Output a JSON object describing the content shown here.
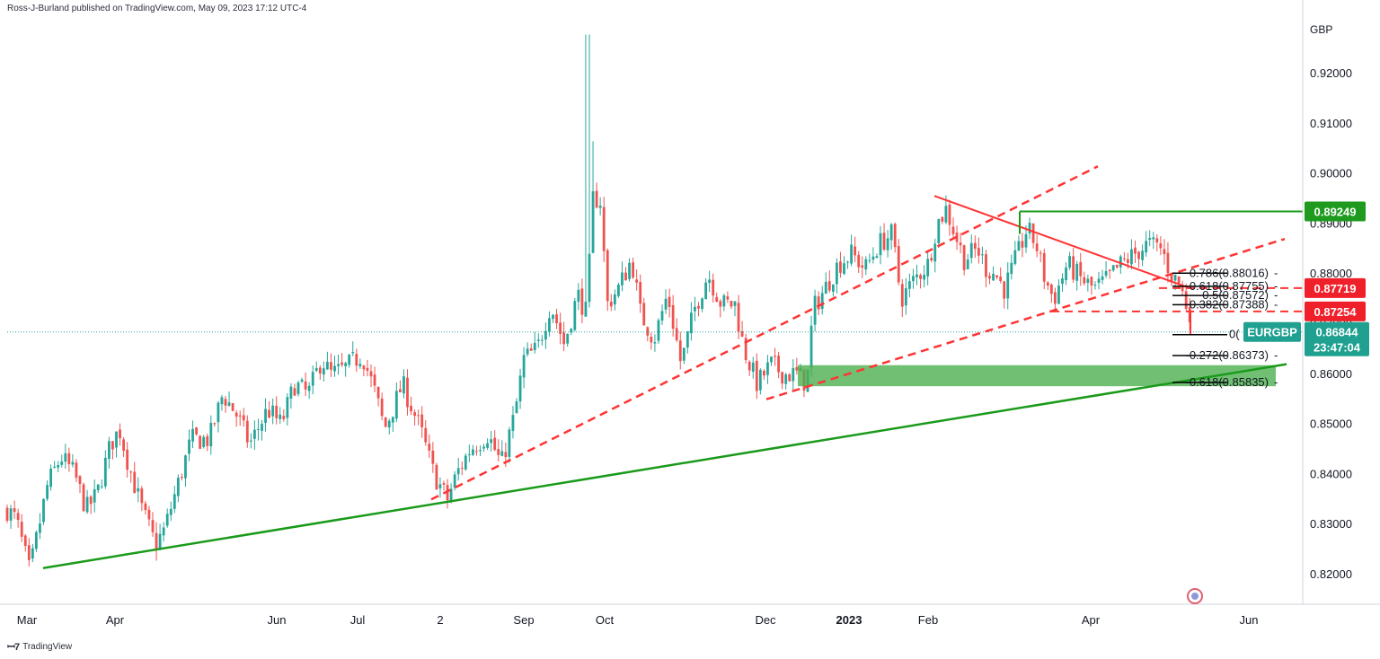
{
  "header": {
    "published": "Ross-J-Burland published on TradingView.com, May 09, 2023 17:12 UTC-4"
  },
  "footer": {
    "brand": "TradingView"
  },
  "colors": {
    "bull": "#26a69a",
    "bear": "#ef5350",
    "support": "#1a9a1a",
    "resistance": "#ff3333",
    "fib": "#000000",
    "zone": "#4caf50"
  },
  "chart_data": {
    "type": "candlestick",
    "symbol": "EURGBP",
    "currency": "GBP",
    "timeframe": "daily",
    "ylim": [
      0.8145,
      0.9295
    ],
    "y_ticks": [
      "0.92000",
      "0.91000",
      "0.90000",
      "0.89000",
      "0.88000",
      "0.87000",
      "0.86000",
      "0.85000",
      "0.84000",
      "0.83000",
      "0.82000"
    ],
    "x_labels": [
      "Mar",
      "Apr",
      "Jun",
      "Jul",
      "2",
      "Sep",
      "Oct",
      "Dec",
      "2023",
      "Feb",
      "Apr",
      "Jun"
    ],
    "price_path": [
      [
        0,
        0.833
      ],
      [
        10,
        0.831
      ],
      [
        25,
        0.8205
      ],
      [
        45,
        0.838
      ],
      [
        60,
        0.8435
      ],
      [
        75,
        0.84
      ],
      [
        88,
        0.833
      ],
      [
        100,
        0.836
      ],
      [
        115,
        0.846
      ],
      [
        125,
        0.849
      ],
      [
        135,
        0.842
      ],
      [
        150,
        0.833
      ],
      [
        165,
        0.826
      ],
      [
        175,
        0.829
      ],
      [
        190,
        0.838
      ],
      [
        205,
        0.847
      ],
      [
        225,
        0.847
      ],
      [
        240,
        0.856
      ],
      [
        255,
        0.852
      ],
      [
        270,
        0.846
      ],
      [
        290,
        0.853
      ],
      [
        305,
        0.85
      ],
      [
        320,
        0.858
      ],
      [
        335,
        0.856
      ],
      [
        350,
        0.863
      ],
      [
        360,
        0.86
      ],
      [
        375,
        0.861
      ],
      [
        395,
        0.864
      ],
      [
        410,
        0.856
      ],
      [
        420,
        0.849
      ],
      [
        440,
        0.858
      ],
      [
        460,
        0.849
      ],
      [
        475,
        0.84
      ],
      [
        490,
        0.835
      ],
      [
        500,
        0.84
      ],
      [
        515,
        0.845
      ],
      [
        535,
        0.848
      ],
      [
        550,
        0.842
      ],
      [
        565,
        0.852
      ],
      [
        575,
        0.863
      ],
      [
        590,
        0.865
      ],
      [
        605,
        0.874
      ],
      [
        620,
        0.866
      ],
      [
        635,
        0.876
      ],
      [
        645,
        0.872
      ],
      [
        652,
        0.895
      ],
      [
        660,
        0.895
      ],
      [
        668,
        0.874
      ],
      [
        680,
        0.877
      ],
      [
        695,
        0.883
      ],
      [
        705,
        0.872
      ],
      [
        720,
        0.867
      ],
      [
        735,
        0.876
      ],
      [
        750,
        0.862
      ],
      [
        765,
        0.873
      ],
      [
        780,
        0.88
      ],
      [
        795,
        0.874
      ],
      [
        810,
        0.874
      ],
      [
        820,
        0.865
      ],
      [
        835,
        0.858
      ],
      [
        850,
        0.862
      ],
      [
        865,
        0.86
      ],
      [
        880,
        0.86
      ],
      [
        890,
        0.858
      ],
      [
        897,
        0.873
      ],
      [
        910,
        0.877
      ],
      [
        925,
        0.882
      ],
      [
        940,
        0.884
      ],
      [
        955,
        0.881
      ],
      [
        970,
        0.886
      ],
      [
        985,
        0.888
      ],
      [
        995,
        0.875
      ],
      [
        1010,
        0.879
      ],
      [
        1025,
        0.882
      ],
      [
        1035,
        0.89
      ],
      [
        1045,
        0.893
      ],
      [
        1055,
        0.888
      ],
      [
        1065,
        0.883
      ],
      [
        1080,
        0.885
      ],
      [
        1090,
        0.881
      ],
      [
        1100,
        0.88
      ],
      [
        1110,
        0.877
      ],
      [
        1125,
        0.884
      ],
      [
        1135,
        0.889
      ],
      [
        1145,
        0.886
      ],
      [
        1155,
        0.879
      ],
      [
        1165,
        0.875
      ],
      [
        1180,
        0.882
      ],
      [
        1195,
        0.879
      ],
      [
        1210,
        0.877
      ],
      [
        1225,
        0.879
      ],
      [
        1240,
        0.882
      ],
      [
        1255,
        0.884
      ],
      [
        1270,
        0.886
      ],
      [
        1285,
        0.885
      ],
      [
        1295,
        0.88
      ],
      [
        1305,
        0.878
      ],
      [
        1312,
        0.874
      ],
      [
        1318,
        0.872
      ],
      [
        1322,
        0.869
      ],
      [
        1324,
        0.8684
      ]
    ],
    "price_tags": [
      {
        "label": "0.89249",
        "value": 0.89249,
        "color": "#1e9a1e"
      },
      {
        "label": "0.87719",
        "value": 0.87719,
        "color": "#f0202a"
      },
      {
        "label": "0.87254",
        "value": 0.87254,
        "color": "#f0202a"
      }
    ],
    "last_price": {
      "symbol": "EURGBP",
      "label": "0.86844",
      "value": 0.86844,
      "countdown": "23:47:04",
      "color": "#1fa090"
    },
    "fib_levels": [
      {
        "label": "0.786(0.88016)",
        "value": 0.88016
      },
      {
        "label": "0.618(0.87755)",
        "value": 0.87755
      },
      {
        "label": "0.5(0.87572)",
        "value": 0.87572
      },
      {
        "label": "0.382(0.87388)",
        "value": 0.87388
      },
      {
        "label": "0(",
        "value": 0.8679
      },
      {
        "label": "-0.272(0.86373)",
        "value": 0.86373
      },
      {
        "label": "-0.618(0.85835)",
        "value": 0.85835
      }
    ],
    "support_zone": [
      0.8576,
      0.8618
    ],
    "grid": false
  }
}
